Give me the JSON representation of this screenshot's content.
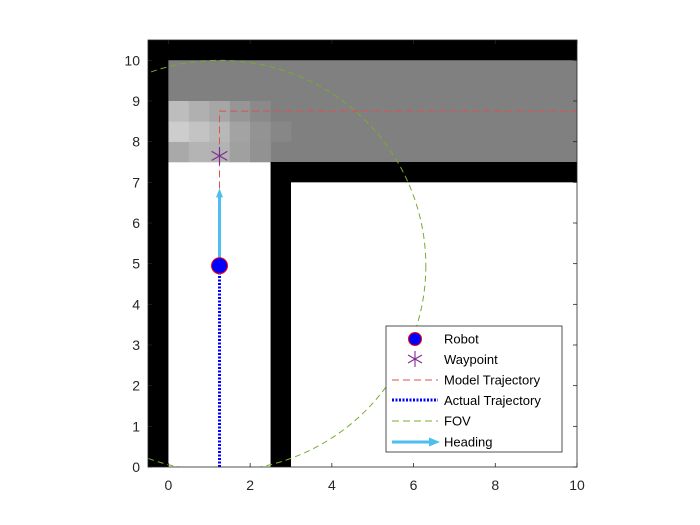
{
  "chart_data": {
    "type": "map-plot",
    "xlim": [
      -0.5,
      10
    ],
    "ylim": [
      0,
      10.5
    ],
    "xticks": [
      0,
      2,
      4,
      6,
      8,
      10
    ],
    "yticks": [
      0,
      1,
      2,
      3,
      4,
      5,
      6,
      7,
      8,
      9,
      10
    ],
    "grid": false,
    "legend_location": "bottom-right",
    "walls": [
      {
        "name": "outer-left",
        "x0": -0.5,
        "y0": 0,
        "x1": 0,
        "y1": 10.5
      },
      {
        "name": "outer-top",
        "x0": -0.5,
        "y0": 10,
        "x1": 10,
        "y1": 10.5
      },
      {
        "name": "corridor-divider",
        "x0": 2.5,
        "y0": 0,
        "x1": 3,
        "y1": 7.5
      },
      {
        "name": "room-top-wall",
        "x0": 3,
        "y0": 7,
        "x1": 10,
        "y1": 7.5
      }
    ],
    "explored_region": {
      "x0": 0,
      "y0": 7.5,
      "x1": 10,
      "y1": 10,
      "color": "#808080"
    },
    "light_cells": [
      {
        "x": 0,
        "y": 7.5,
        "w": 0.5,
        "h": 0.5,
        "color": "#a9a9a9"
      },
      {
        "x": 0.5,
        "y": 7.5,
        "w": 0.5,
        "h": 0.5,
        "color": "#b4b4b4"
      },
      {
        "x": 1,
        "y": 7.5,
        "w": 0.5,
        "h": 0.5,
        "color": "#b3b3b3"
      },
      {
        "x": 1.5,
        "y": 7.5,
        "w": 0.5,
        "h": 0.5,
        "color": "#a0a0a0"
      },
      {
        "x": 2,
        "y": 7.5,
        "w": 0.5,
        "h": 0.5,
        "color": "#929292"
      },
      {
        "x": 0,
        "y": 8,
        "w": 0.5,
        "h": 0.5,
        "color": "#cdcdcd"
      },
      {
        "x": 0.5,
        "y": 8,
        "w": 0.5,
        "h": 0.5,
        "color": "#c3c3c3"
      },
      {
        "x": 1,
        "y": 8,
        "w": 0.5,
        "h": 0.5,
        "color": "#b8b8b8"
      },
      {
        "x": 1.5,
        "y": 8,
        "w": 0.5,
        "h": 0.5,
        "color": "#a3a3a3"
      },
      {
        "x": 2,
        "y": 8,
        "w": 0.5,
        "h": 0.5,
        "color": "#939393"
      },
      {
        "x": 2.5,
        "y": 8,
        "w": 0.5,
        "h": 0.5,
        "color": "#878787"
      },
      {
        "x": 0,
        "y": 8.5,
        "w": 0.5,
        "h": 0.5,
        "color": "#bdbdbd"
      },
      {
        "x": 0.5,
        "y": 8.5,
        "w": 0.5,
        "h": 0.5,
        "color": "#b0b0b0"
      },
      {
        "x": 1,
        "y": 8.5,
        "w": 0.5,
        "h": 0.5,
        "color": "#a6a6a6"
      },
      {
        "x": 1.5,
        "y": 8.5,
        "w": 0.5,
        "h": 0.5,
        "color": "#969696"
      },
      {
        "x": 2,
        "y": 8.5,
        "w": 0.5,
        "h": 0.5,
        "color": "#8a8a8a"
      }
    ],
    "series": [
      {
        "name": "Robot",
        "kind": "marker",
        "x": 1.25,
        "y": 4.95,
        "color": "#0000ff",
        "edge": "#ff0000"
      },
      {
        "name": "Waypoint",
        "kind": "asterisk",
        "x": 1.25,
        "y": 7.65,
        "color": "#7e2f8e"
      },
      {
        "name": "Model Trajectory",
        "kind": "dashed-line",
        "color": "#d95350",
        "points": [
          [
            1.25,
            6.85
          ],
          [
            1.25,
            8.75
          ],
          [
            10,
            8.75
          ]
        ]
      },
      {
        "name": "Actual Trajectory",
        "kind": "dotted-line",
        "color": "#0000ff",
        "points": [
          [
            1.25,
            0
          ],
          [
            1.25,
            4.95
          ]
        ]
      },
      {
        "name": "FOV",
        "kind": "dashed-circle",
        "color": "#77ac30",
        "cx": 1.25,
        "cy": 4.95,
        "r": 5.05
      },
      {
        "name": "Heading",
        "kind": "arrow",
        "color": "#4dbeee",
        "from": [
          1.25,
          4.95
        ],
        "to": [
          1.25,
          6.85
        ]
      }
    ]
  },
  "legend": {
    "robot": "Robot",
    "waypoint": "Waypoint",
    "model_trajectory": "Model Trajectory",
    "actual_trajectory": "Actual Trajectory",
    "fov": "FOV",
    "heading": "Heading"
  }
}
